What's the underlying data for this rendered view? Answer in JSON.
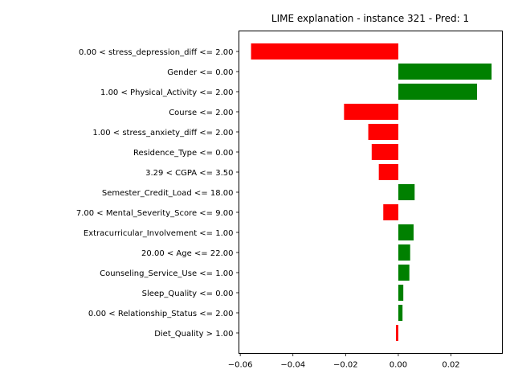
{
  "chart_data": {
    "type": "bar",
    "orientation": "horizontal",
    "title": "LIME explanation - instance 321 - Pred: 1",
    "xlabel": "",
    "ylabel": "",
    "xlim": [
      -0.0605,
      0.0395
    ],
    "xticks": [
      -0.06,
      -0.04,
      -0.02,
      0.0,
      0.02
    ],
    "xtick_labels": [
      "−0.06",
      "−0.04",
      "−0.02",
      "0.00",
      "0.02"
    ],
    "grid": false,
    "legend": "none",
    "positive_color": "#008000",
    "negative_color": "#ff0000",
    "categories": [
      "0.00 < stress_depression_diff <= 2.00",
      "Gender <= 0.00",
      "1.00 < Physical_Activity <= 2.00",
      "Course <= 2.00",
      "1.00 < stress_anxiety_diff <= 2.00",
      "Residence_Type <= 0.00",
      "3.29 < CGPA <= 3.50",
      "Semester_Credit_Load <= 18.00",
      "7.00 < Mental_Severity_Score <= 9.00",
      "Extracurricular_Involvement <= 1.00",
      "20.00 < Age <= 22.00",
      "Counseling_Service_Use <= 1.00",
      "Sleep_Quality <= 0.00",
      "0.00 < Relationship_Status <= 2.00",
      "Diet_Quality > 1.00"
    ],
    "values": [
      -0.0559,
      0.0354,
      0.0299,
      -0.0206,
      -0.0114,
      -0.0101,
      -0.0074,
      0.0062,
      -0.0057,
      0.0058,
      0.0045,
      0.0042,
      0.0019,
      0.0016,
      -0.0009
    ]
  }
}
